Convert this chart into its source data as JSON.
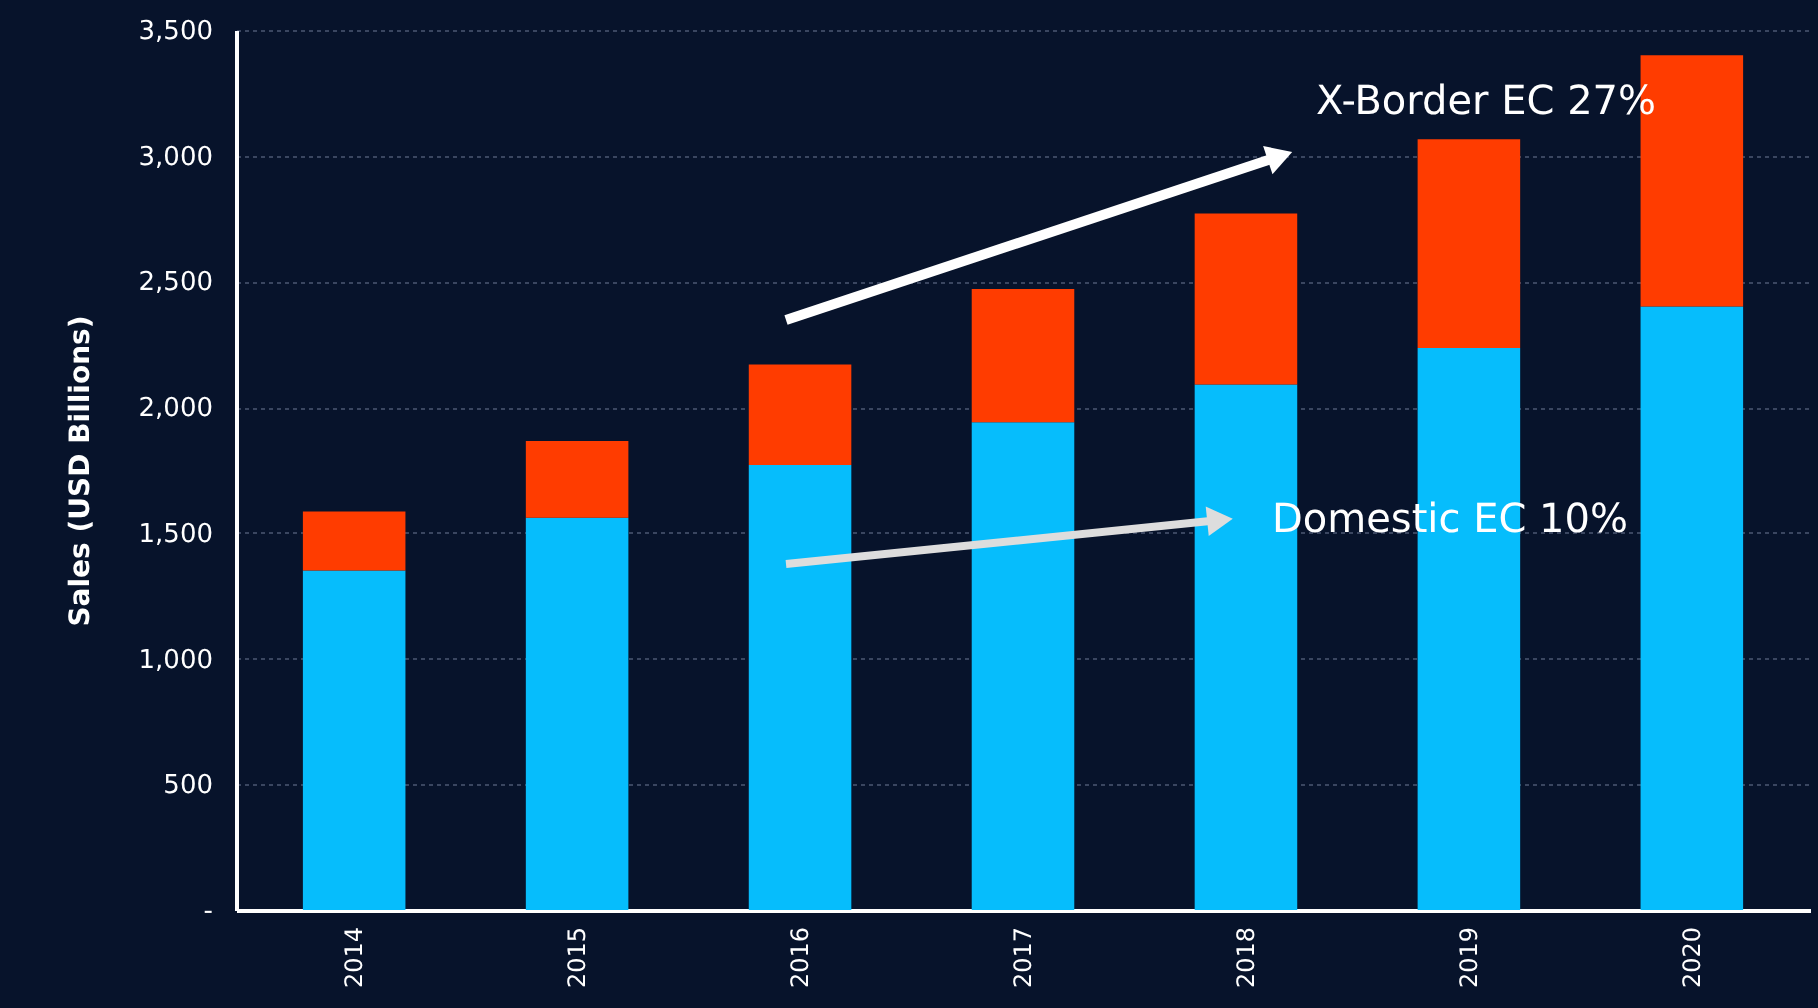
{
  "chart_data": {
    "type": "bar",
    "stacked": true,
    "categories": [
      "2014",
      "2015",
      "2016",
      "2017",
      "2018",
      "2019",
      "2020"
    ],
    "series": [
      {
        "color": "#06bdfc",
        "values": [
          1350,
          1560,
          1770,
          1940,
          2090,
          2235,
          2400
        ]
      },
      {
        "color": "#ff3c00",
        "values": [
          235,
          305,
          400,
          530,
          680,
          830,
          1000
        ]
      }
    ],
    "ylabel": "Sales (USD Billions)",
    "ylim": [
      0,
      3500
    ],
    "yticks": [
      {
        "value": 0,
        "label": "-"
      },
      500,
      {
        "value": 1000,
        "label": "1,000"
      },
      {
        "value": 1500,
        "label": "1,500"
      },
      {
        "value": 2000,
        "label": "2,000"
      },
      {
        "value": 2500,
        "label": "2,500"
      },
      {
        "value": 3000,
        "label": "3,000"
      },
      {
        "value": 3500,
        "label": "3,500"
      }
    ],
    "grid": "y",
    "legend": false,
    "annotations": [
      "X-Border EC  27%",
      "Domestic EC 10%"
    ]
  }
}
